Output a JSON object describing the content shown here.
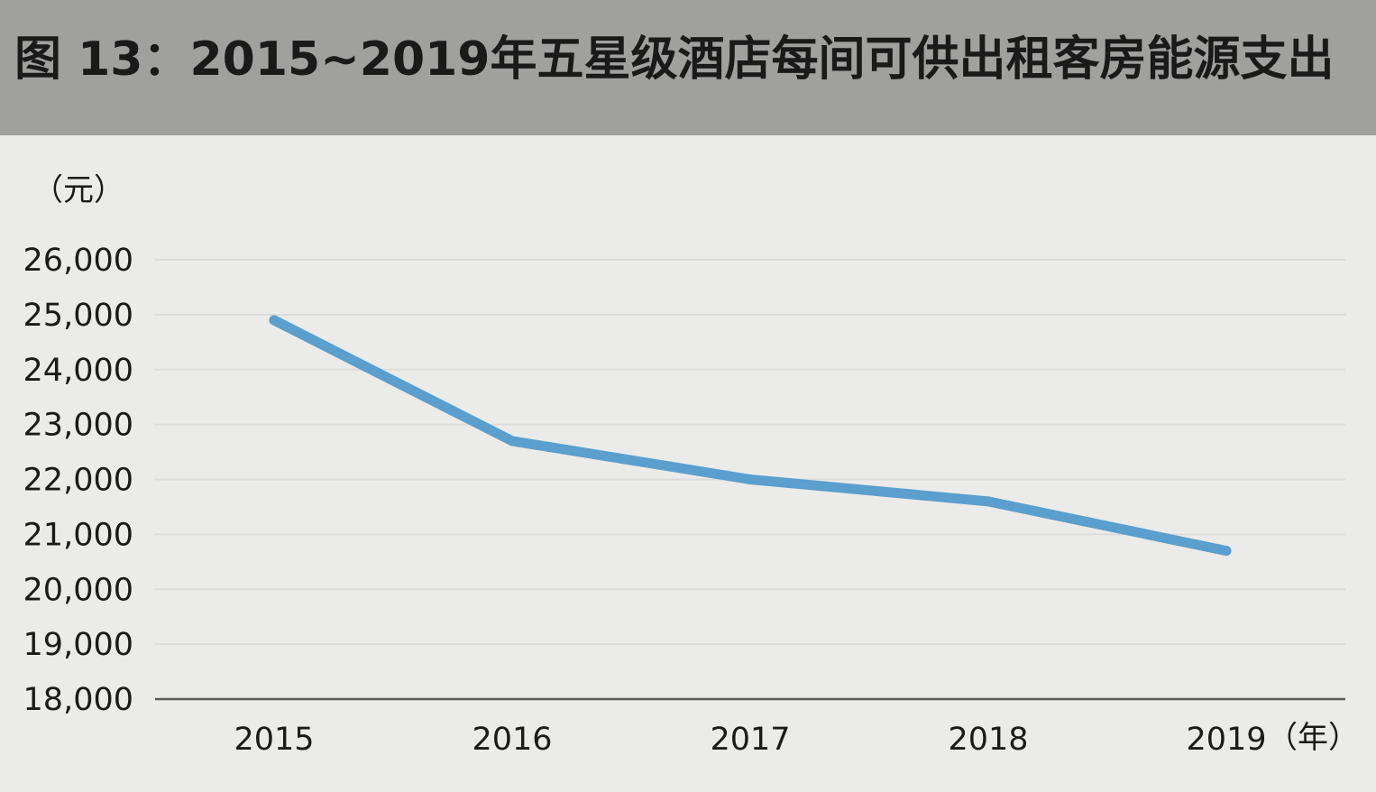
{
  "header": {
    "title": "图 13：2015~2019年五星级酒店每间可供出租客房能源支出"
  },
  "colors": {
    "header_bg": "#a0a09f",
    "plot_bg": "#ebebe9",
    "line": "#5a9fcd",
    "grid": "#dcdcda",
    "axis": "#595959"
  },
  "chart_data": {
    "type": "line",
    "title": "图 13：2015~2019年五星级酒店每间可供出租客房能源支出",
    "unit_label": "（元）",
    "x_unit_label": "（年）",
    "categories": [
      "2015",
      "2016",
      "2017",
      "2018",
      "2019"
    ],
    "series": [
      {
        "values": [
          24900,
          22700,
          22000,
          21600,
          20700
        ]
      }
    ],
    "ylim": [
      18000,
      26000
    ],
    "yticks": [
      18000,
      19000,
      20000,
      21000,
      22000,
      23000,
      24000,
      25000,
      26000
    ],
    "ytick_labels": [
      "18,000",
      "19,000",
      "20,000",
      "21,000",
      "22,000",
      "23,000",
      "24,000",
      "25,000",
      "26,000"
    ],
    "grid": true,
    "legend": "none"
  }
}
